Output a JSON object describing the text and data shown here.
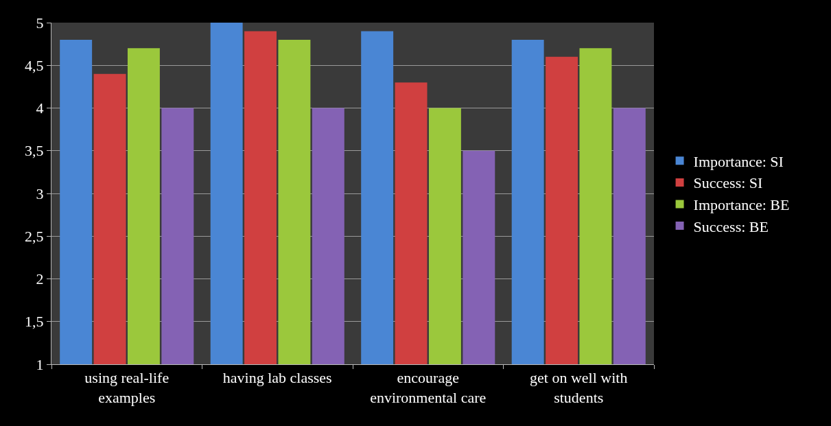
{
  "chart_data": {
    "type": "bar",
    "categories": [
      "using real-life examples",
      "having lab classes",
      "encourage environmental care",
      "get on well with students"
    ],
    "series": [
      {
        "name": "Importance: SI",
        "color": "#4a86d4",
        "values": [
          4.8,
          5.0,
          4.9,
          4.8
        ]
      },
      {
        "name": "Success: SI",
        "color": "#d04040",
        "values": [
          4.4,
          4.9,
          4.3,
          4.6
        ]
      },
      {
        "name": "Importance: BE",
        "color": "#9bc83c",
        "values": [
          4.7,
          4.8,
          4.0,
          4.7
        ]
      },
      {
        "name": "Success: BE",
        "color": "#8462b4",
        "values": [
          4.0,
          4.0,
          3.5,
          4.0
        ]
      }
    ],
    "ylim": [
      1,
      5
    ],
    "yticks": [
      1,
      {
        "value": 1.5,
        "label": "1,5"
      },
      2,
      {
        "value": 2.5,
        "label": "2,5"
      },
      3,
      {
        "value": 3.5,
        "label": "3,5"
      },
      4,
      {
        "value": 4.5,
        "label": "4,5"
      },
      5
    ],
    "grid": "y",
    "legend": "right"
  }
}
